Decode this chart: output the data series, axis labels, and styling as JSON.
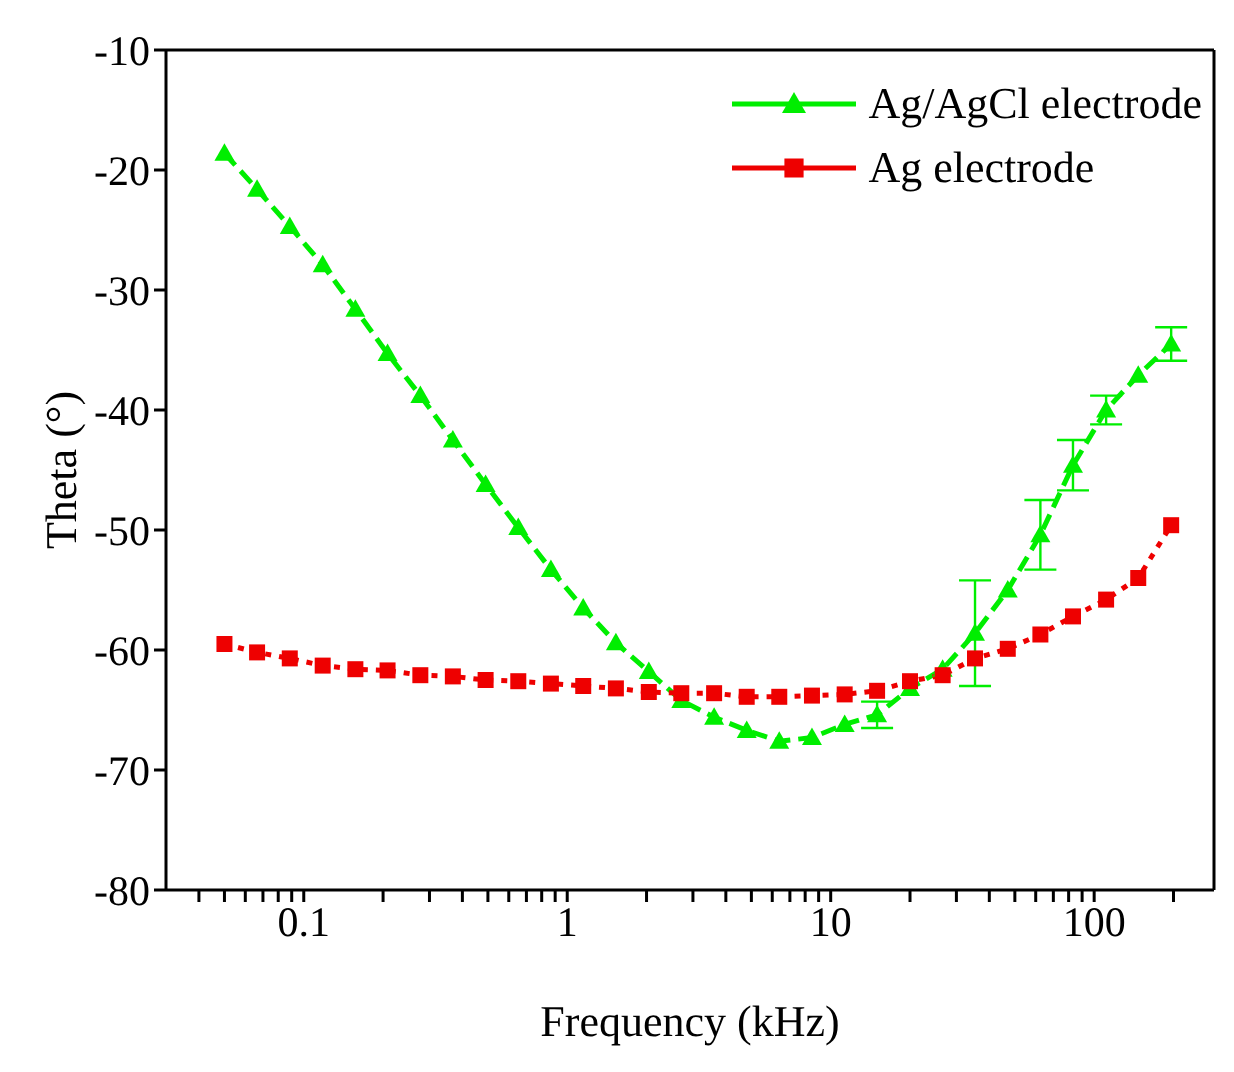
{
  "chart_data": {
    "type": "line",
    "xlabel": "Frequency (kHz)",
    "ylabel": "Theta (°)",
    "log": "x",
    "legend": "top right",
    "grid": false,
    "xlim": [
      0.03,
      285
    ],
    "ylim": [
      -80,
      -10
    ],
    "xticks": [
      {
        "value": 0.04,
        "label": null
      },
      {
        "value": 0.05,
        "label": null
      },
      {
        "value": 0.06,
        "label": null
      },
      {
        "value": 0.07,
        "label": null
      },
      {
        "value": 0.08,
        "label": null
      },
      {
        "value": 0.09,
        "label": null
      },
      0.1,
      {
        "value": 0.2,
        "label": null
      },
      {
        "value": 0.3,
        "label": null
      },
      {
        "value": 0.4,
        "label": null
      },
      {
        "value": 0.5,
        "label": null
      },
      {
        "value": 0.6,
        "label": null
      },
      {
        "value": 0.7,
        "label": null
      },
      {
        "value": 0.8,
        "label": null
      },
      {
        "value": 0.9,
        "label": null
      },
      1,
      {
        "value": 2,
        "label": null
      },
      {
        "value": 3,
        "label": null
      },
      {
        "value": 4,
        "label": null
      },
      {
        "value": 5,
        "label": null
      },
      {
        "value": 6,
        "label": null
      },
      {
        "value": 7,
        "label": null
      },
      {
        "value": 8,
        "label": null
      },
      {
        "value": 9,
        "label": null
      },
      10,
      {
        "value": 20,
        "label": null
      },
      {
        "value": 30,
        "label": null
      },
      {
        "value": 40,
        "label": null
      },
      {
        "value": 50,
        "label": null
      },
      {
        "value": 60,
        "label": null
      },
      {
        "value": 70,
        "label": null
      },
      {
        "value": 80,
        "label": null
      },
      {
        "value": 90,
        "label": null
      },
      100,
      {
        "value": 200,
        "label": null
      }
    ],
    "yticks": [
      -80,
      -70,
      -60,
      -50,
      -40,
      -30,
      -20,
      -10
    ],
    "x": [
      0.05,
      0.0665,
      0.0885,
      0.118,
      0.157,
      0.208,
      0.277,
      0.368,
      0.49,
      0.652,
      0.867,
      1.15,
      1.53,
      2.04,
      2.71,
      3.61,
      4.8,
      6.38,
      8.49,
      11.3,
      15.0,
      20.0,
      26.6,
      35.3,
      47.0,
      62.5,
      83.1,
      111,
      147,
      196
    ],
    "series": [
      {
        "name": "Ag/AgCl electrode",
        "color": "#00ee00",
        "marker": "triangle",
        "line_style": "dashed",
        "values": [
          -18.6,
          -21.6,
          -24.7,
          -27.9,
          -31.6,
          -35.3,
          -38.8,
          -42.5,
          -46.2,
          -49.8,
          -53.3,
          -56.5,
          -59.4,
          -61.8,
          -64.2,
          -65.6,
          -66.7,
          -67.6,
          -67.3,
          -66.2,
          -65.4,
          -63.2,
          -61.6,
          -58.6,
          -55.0,
          -50.4,
          -44.6,
          -40.0,
          -37.1,
          -34.5
        ],
        "errors": [
          null,
          null,
          null,
          null,
          null,
          null,
          null,
          null,
          null,
          null,
          null,
          null,
          null,
          null,
          null,
          null,
          null,
          null,
          null,
          null,
          1.1,
          null,
          null,
          4.4,
          null,
          2.9,
          2.1,
          1.2,
          null,
          1.4
        ]
      },
      {
        "name": "Ag electrode",
        "color": "#ee0000",
        "marker": "square",
        "line_style": "dotted",
        "values": [
          -59.5,
          -60.2,
          -60.7,
          -61.3,
          -61.6,
          -61.7,
          -62.1,
          -62.2,
          -62.5,
          -62.6,
          -62.8,
          -63.0,
          -63.2,
          -63.5,
          -63.6,
          -63.6,
          -63.9,
          -63.9,
          -63.8,
          -63.7,
          -63.4,
          -62.6,
          -62.1,
          -60.7,
          -59.9,
          -58.7,
          -57.2,
          -55.8,
          -54.0,
          -49.6
        ]
      }
    ]
  }
}
